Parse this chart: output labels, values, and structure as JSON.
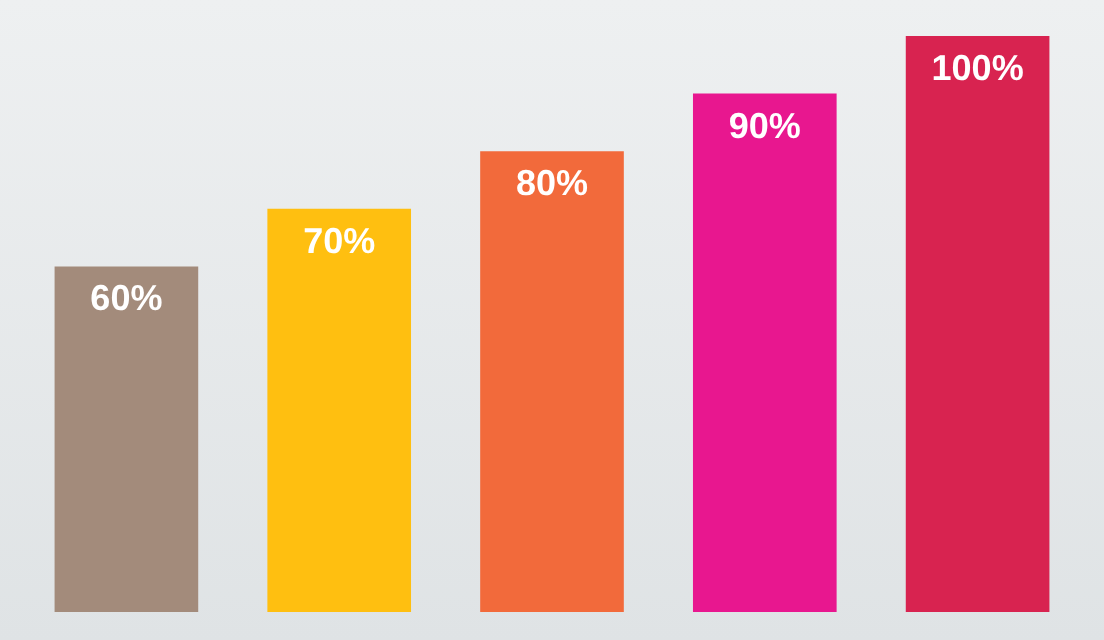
{
  "chart_data": {
    "type": "bar",
    "categories": [
      null,
      null,
      null,
      null,
      null
    ],
    "values": [
      60,
      70,
      80,
      90,
      100
    ],
    "colors": [
      "#a38b7b",
      "#ffbf10",
      "#f26a3b",
      "#e8178f",
      "#d82350"
    ],
    "value_labels": [
      "60%",
      "70%",
      "80%",
      "90%",
      "100%"
    ]
  }
}
